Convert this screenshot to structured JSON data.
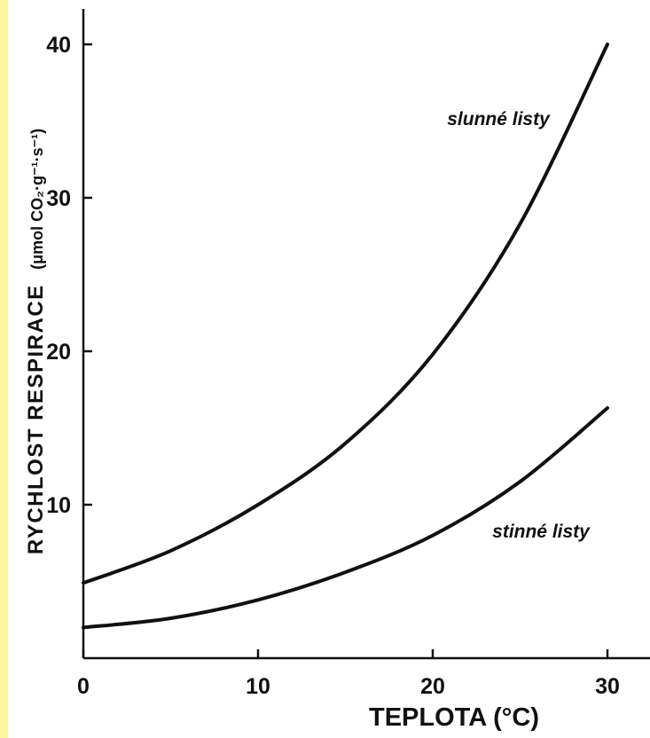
{
  "chart_data": {
    "type": "line",
    "xlabel": "TEPLOTA (°C)",
    "ylabel": "RYCHLOST RESPIRACE",
    "ylabel_unit": "(μmol CO₂·g⁻¹·s⁻¹)",
    "xlim": [
      0,
      32
    ],
    "ylim": [
      0,
      42
    ],
    "xticks": [
      0,
      10,
      20,
      30
    ],
    "yticks": [
      10,
      20,
      30,
      40
    ],
    "xtick_labels": [
      "0",
      "10",
      "20",
      "30"
    ],
    "ytick_labels": [
      "10",
      "20",
      "30",
      "40"
    ],
    "grid": false,
    "series": [
      {
        "name": "slunné listy",
        "x": [
          0,
          5,
          10,
          15,
          20,
          25,
          30
        ],
        "y": [
          4.9,
          7.0,
          10.0,
          14.0,
          19.8,
          28.3,
          40.0
        ]
      },
      {
        "name": "stinné listy",
        "x": [
          0,
          5,
          10,
          15,
          20,
          25,
          30
        ],
        "y": [
          2.0,
          2.6,
          3.8,
          5.6,
          8.0,
          11.5,
          16.3
        ]
      }
    ]
  }
}
